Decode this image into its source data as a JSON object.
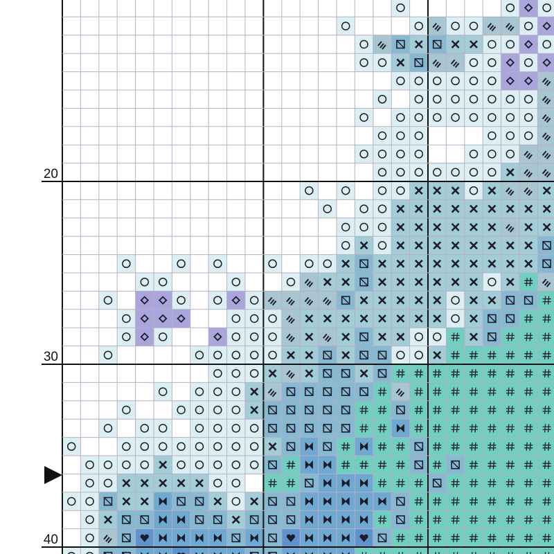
{
  "row_labels": [
    "20",
    "30",
    "40"
  ]
}
